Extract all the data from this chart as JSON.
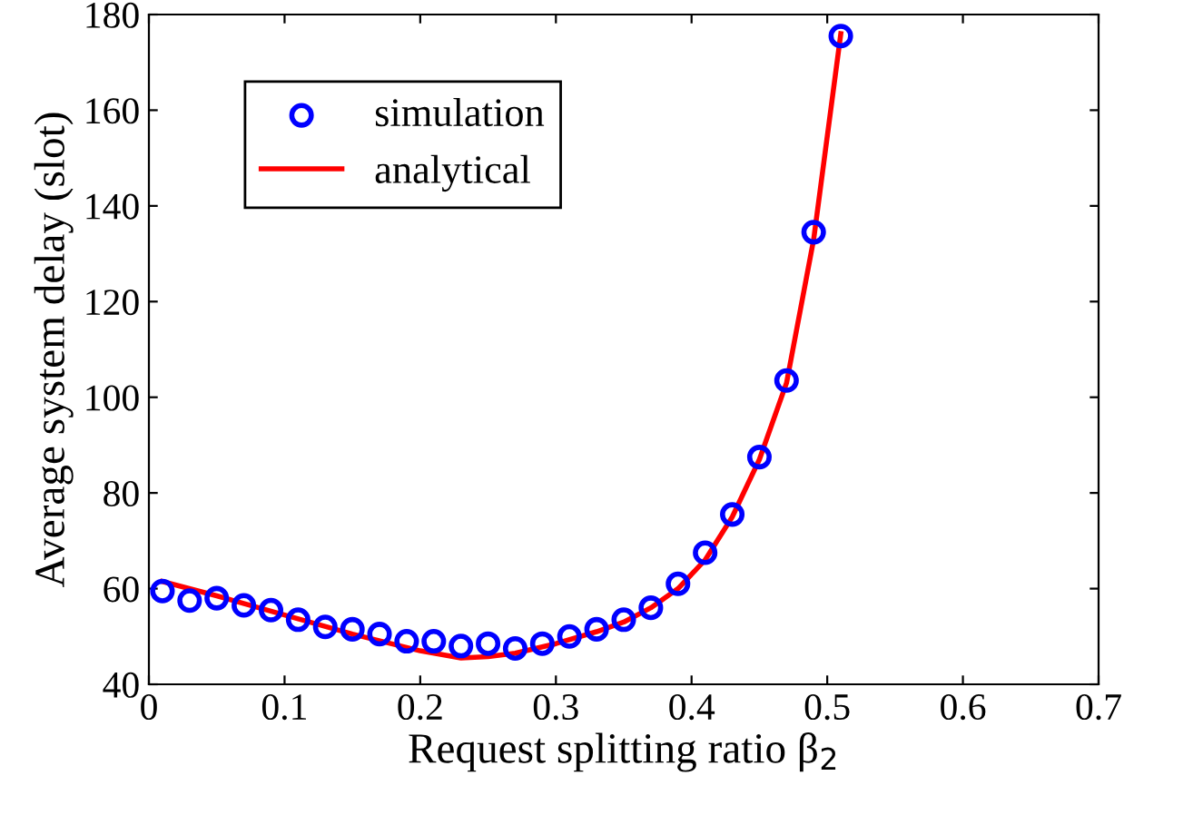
{
  "chart_data": {
    "type": "line",
    "xlabel": "Request splitting ratio β$_{2}$",
    "ylabel": "Average system delay (slot)",
    "xlim": [
      0,
      0.7
    ],
    "xticks": [
      0,
      0.1,
      0.2,
      0.3,
      0.4,
      0.5,
      0.6,
      0.7
    ],
    "ylim": [
      40,
      180
    ],
    "yticks": [
      40,
      60,
      80,
      100,
      120,
      140,
      160,
      180
    ],
    "legend": "top left",
    "grid": false,
    "series": [
      {
        "name": "simulation",
        "type": "scatter",
        "marker": "circle",
        "color": "#0000ff",
        "x": [
          0.01,
          0.03,
          0.05,
          0.07,
          0.09,
          0.11,
          0.13,
          0.15,
          0.17,
          0.19,
          0.21,
          0.23,
          0.25,
          0.27,
          0.29,
          0.31,
          0.33,
          0.35,
          0.37,
          0.39,
          0.41,
          0.43,
          0.45,
          0.47,
          0.49,
          0.51
        ],
        "values": [
          59.5,
          57.5,
          58,
          56.5,
          55.5,
          53.5,
          52,
          51.5,
          50.5,
          49,
          49,
          48,
          48.5,
          47.5,
          48.5,
          50,
          51.5,
          53.5,
          56,
          61,
          67.5,
          75.5,
          87.5,
          103.5,
          134.5,
          175.5
        ]
      },
      {
        "name": "analytical",
        "marker": "none",
        "line_style": "solid",
        "color": "#ff0000",
        "x": [
          0.01,
          0.05,
          0.1,
          0.15,
          0.2,
          0.23,
          0.25,
          0.27,
          0.3,
          0.33,
          0.35,
          0.37,
          0.39,
          0.41,
          0.43,
          0.45,
          0.47,
          0.49,
          0.51
        ],
        "values": [
          61.5,
          58.5,
          54.5,
          50.5,
          47,
          45.5,
          45.8,
          46.5,
          48.5,
          51,
          53,
          56,
          60,
          66,
          75,
          87,
          103,
          133,
          176
        ]
      }
    ]
  }
}
